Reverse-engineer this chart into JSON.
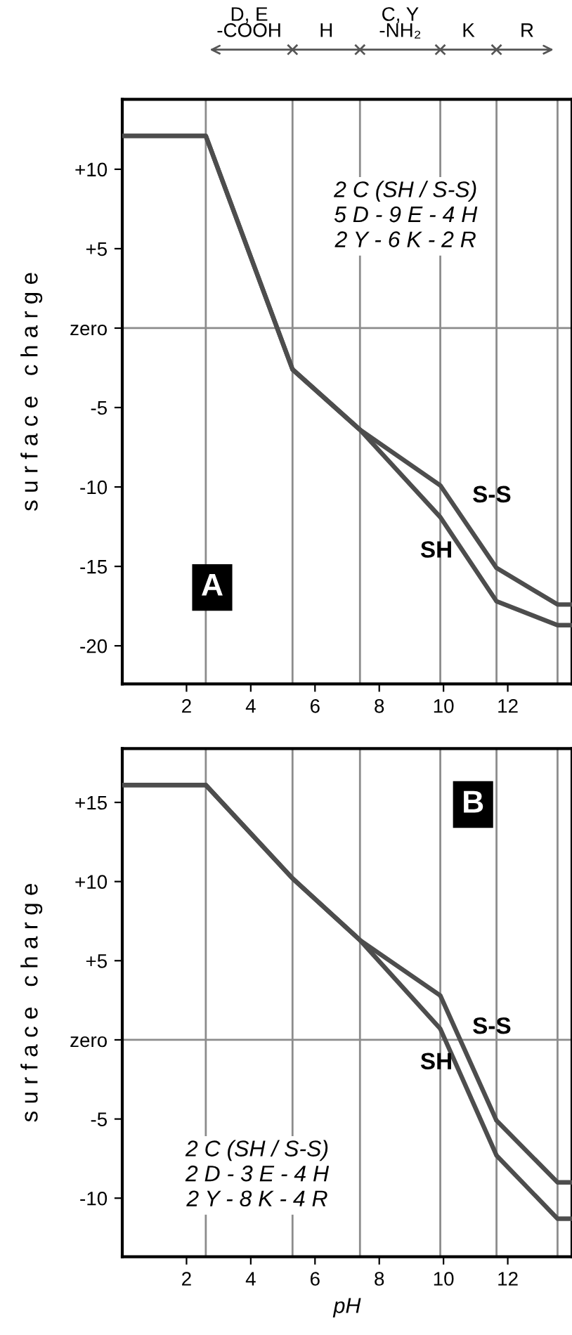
{
  "chart_data": [
    {
      "type": "line",
      "title": "A",
      "ylabel": "s u r f a c e   c h a r g e",
      "x": [
        0,
        2.6,
        5.3,
        7.4,
        9.9,
        11.65,
        13.55,
        14
      ],
      "series": [
        {
          "name": "S-S",
          "color": "#4d4d4d",
          "values": [
            12.1,
            12.1,
            -2.6,
            -6.4,
            -9.9,
            -15.1,
            -17.4,
            -17.4
          ]
        },
        {
          "name": "SH",
          "color": "#4d4d4d",
          "values": [
            12.1,
            12.1,
            -2.6,
            -6.4,
            -11.9,
            -17.2,
            -18.7,
            -18.7
          ]
        }
      ],
      "xlim": [
        0,
        14
      ],
      "xticks": [
        2,
        4,
        6,
        8,
        10,
        12
      ],
      "ylim": [
        -22.4,
        14.4
      ],
      "yticks": [
        {
          "value": 10,
          "label": "+10"
        },
        {
          "value": 5,
          "label": "+5"
        },
        {
          "value": 0,
          "label": "zero"
        },
        {
          "value": -5,
          "label": "-5"
        },
        {
          "value": -10,
          "label": "-10"
        },
        {
          "value": -15,
          "label": "-15"
        },
        {
          "value": -20,
          "label": "-20"
        }
      ],
      "ref_lines": [
        {
          "axis": "y",
          "value": 0,
          "color": "#8c8c8c"
        },
        {
          "axis": "x",
          "value": 2.6,
          "color": "#8c8c8c"
        },
        {
          "axis": "x",
          "value": 5.3,
          "color": "#8c8c8c"
        },
        {
          "axis": "x",
          "value": 7.4,
          "color": "#8c8c8c"
        },
        {
          "axis": "x",
          "value": 9.9,
          "color": "#8c8c8c"
        },
        {
          "axis": "x",
          "value": 11.65,
          "color": "#8c8c8c"
        },
        {
          "axis": "x",
          "value": 13.55,
          "color": "#8c8c8c"
        }
      ],
      "annotations": [
        "2 C (SH / S-S)\n5 D - 9 E - 4 H\n2 Y - 6 K - 2 R",
        "D, E\n-COOH",
        "H",
        "C, Y\n-NH₂",
        "K",
        "R"
      ],
      "grid": false,
      "legend": false,
      "marker": "none",
      "line_style": "solid"
    },
    {
      "type": "line",
      "title": "B",
      "ylabel": "s u r f a c e   c h a r g e",
      "xlabel": "pH",
      "x": [
        0,
        2.6,
        5.3,
        7.4,
        9.9,
        11.65,
        13.55,
        14
      ],
      "series": [
        {
          "name": "S-S",
          "color": "#4d4d4d",
          "values": [
            16.1,
            16.1,
            10.2,
            6.3,
            2.8,
            -5.1,
            -9.0,
            -9.0
          ]
        },
        {
          "name": "SH",
          "color": "#4d4d4d",
          "values": [
            16.1,
            16.1,
            10.2,
            6.3,
            0.7,
            -7.3,
            -11.3,
            -11.3
          ]
        }
      ],
      "xlim": [
        0,
        14
      ],
      "xticks": [
        2,
        4,
        6,
        8,
        10,
        12
      ],
      "ylim": [
        -13.7,
        18.4
      ],
      "yticks": [
        {
          "value": 15,
          "label": "+15"
        },
        {
          "value": 10,
          "label": "+10"
        },
        {
          "value": 5,
          "label": "+5"
        },
        {
          "value": 0,
          "label": "zero"
        },
        {
          "value": -5,
          "label": "-5"
        },
        {
          "value": -10,
          "label": "-10"
        }
      ],
      "ref_lines": [
        {
          "axis": "y",
          "value": 0,
          "color": "#8c8c8c"
        },
        {
          "axis": "x",
          "value": 2.6,
          "color": "#8c8c8c"
        },
        {
          "axis": "x",
          "value": 5.3,
          "color": "#8c8c8c"
        },
        {
          "axis": "x",
          "value": 7.4,
          "color": "#8c8c8c"
        },
        {
          "axis": "x",
          "value": 9.9,
          "color": "#8c8c8c"
        },
        {
          "axis": "x",
          "value": 11.65,
          "color": "#8c8c8c"
        },
        {
          "axis": "x",
          "value": 13.55,
          "color": "#8c8c8c"
        }
      ],
      "annotations": [
        "2 C (SH / S-S)\n2 D - 3 E - 4 H\n2 Y - 8 K - 4 R"
      ],
      "grid": false,
      "legend": false,
      "marker": "none",
      "line_style": "solid"
    }
  ]
}
